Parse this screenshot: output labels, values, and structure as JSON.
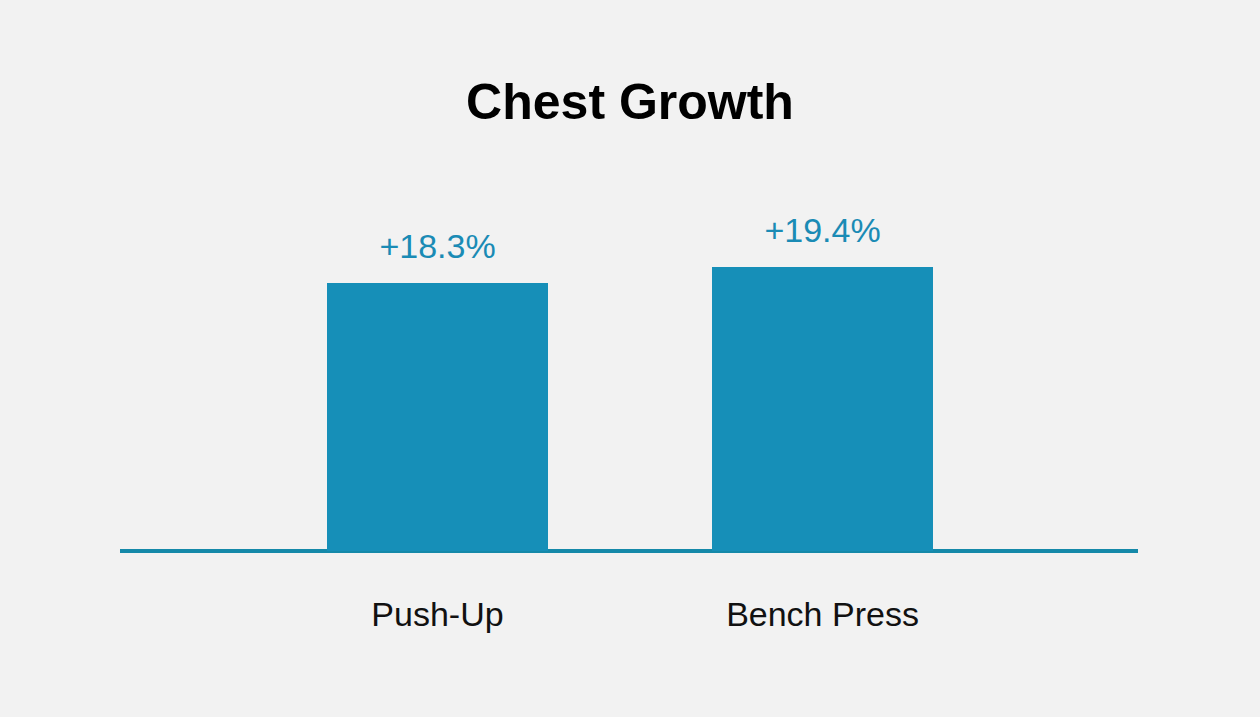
{
  "chart_data": {
    "type": "bar",
    "title": "Chest Growth",
    "categories": [
      "Push-Up",
      "Bench Press"
    ],
    "values": [
      18.3,
      19.4
    ],
    "value_labels": [
      "+18.3%",
      "+19.4%"
    ],
    "color": "#168fb8",
    "ylim": [
      0,
      25
    ],
    "grid": false,
    "data_labels": true,
    "tick_labels": "x"
  }
}
